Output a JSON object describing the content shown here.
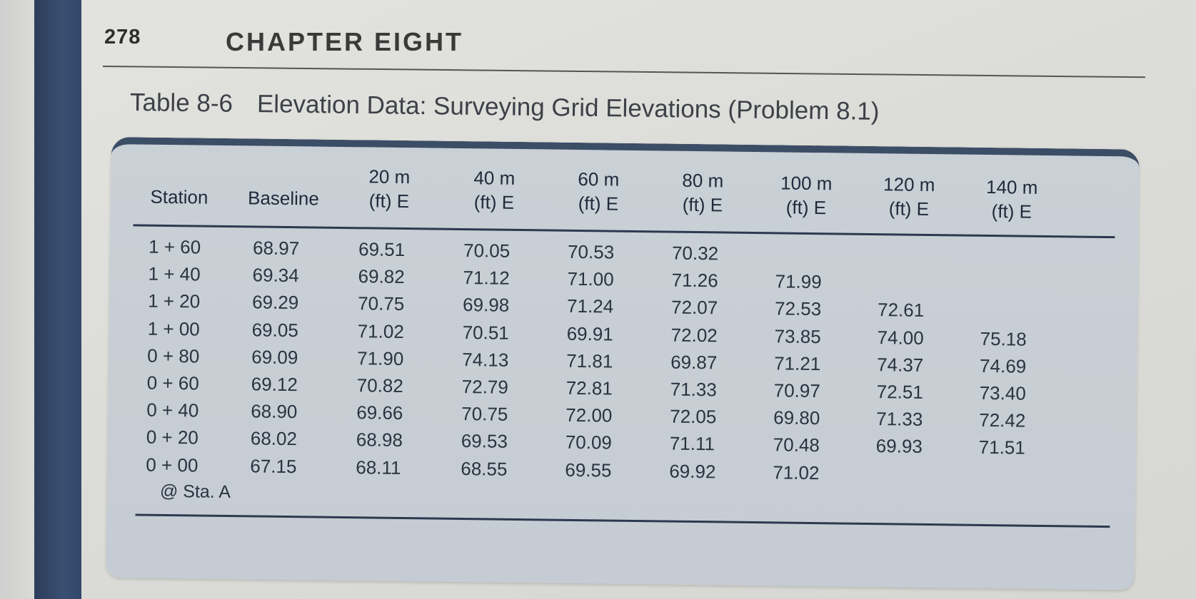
{
  "page": {
    "number": "278",
    "chapter": "CHAPTER EIGHT"
  },
  "caption": {
    "table_number": "Table 8-6",
    "title": "Elevation Data: Surveying Grid Elevations (Problem 8.1)"
  },
  "table": {
    "headers": [
      {
        "line1": "Station",
        "line2": ""
      },
      {
        "line1": "Baseline",
        "line2": ""
      },
      {
        "line1": "20 m",
        "line2": "(ft) E"
      },
      {
        "line1": "40 m",
        "line2": "(ft) E"
      },
      {
        "line1": "60 m",
        "line2": "(ft) E"
      },
      {
        "line1": "80 m",
        "line2": "(ft) E"
      },
      {
        "line1": "100 m",
        "line2": "(ft) E"
      },
      {
        "line1": "120 m",
        "line2": "(ft) E"
      },
      {
        "line1": "140 m",
        "line2": "(ft) E"
      }
    ],
    "rows": [
      [
        "1 + 60",
        "68.97",
        "69.51",
        "70.05",
        "70.53",
        "70.32",
        "",
        "",
        ""
      ],
      [
        "1 + 40",
        "69.34",
        "69.82",
        "71.12",
        "71.00",
        "71.26",
        "71.99",
        "",
        ""
      ],
      [
        "1 + 20",
        "69.29",
        "70.75",
        "69.98",
        "71.24",
        "72.07",
        "72.53",
        "72.61",
        ""
      ],
      [
        "1 + 00",
        "69.05",
        "71.02",
        "70.51",
        "69.91",
        "72.02",
        "73.85",
        "74.00",
        "75.18"
      ],
      [
        "0 + 80",
        "69.09",
        "71.90",
        "74.13",
        "71.81",
        "69.87",
        "71.21",
        "74.37",
        "74.69"
      ],
      [
        "0 + 60",
        "69.12",
        "70.82",
        "72.79",
        "72.81",
        "71.33",
        "70.97",
        "72.51",
        "73.40"
      ],
      [
        "0 + 40",
        "68.90",
        "69.66",
        "70.75",
        "72.00",
        "72.05",
        "69.80",
        "71.33",
        "72.42"
      ],
      [
        "0 + 20",
        "68.02",
        "68.98",
        "69.53",
        "70.09",
        "71.11",
        "70.48",
        "69.93",
        "71.51"
      ],
      [
        "0 + 00",
        "67.15",
        "68.11",
        "68.55",
        "69.55",
        "69.92",
        "71.02",
        "",
        ""
      ]
    ],
    "footnote": "@ Sta. A"
  }
}
